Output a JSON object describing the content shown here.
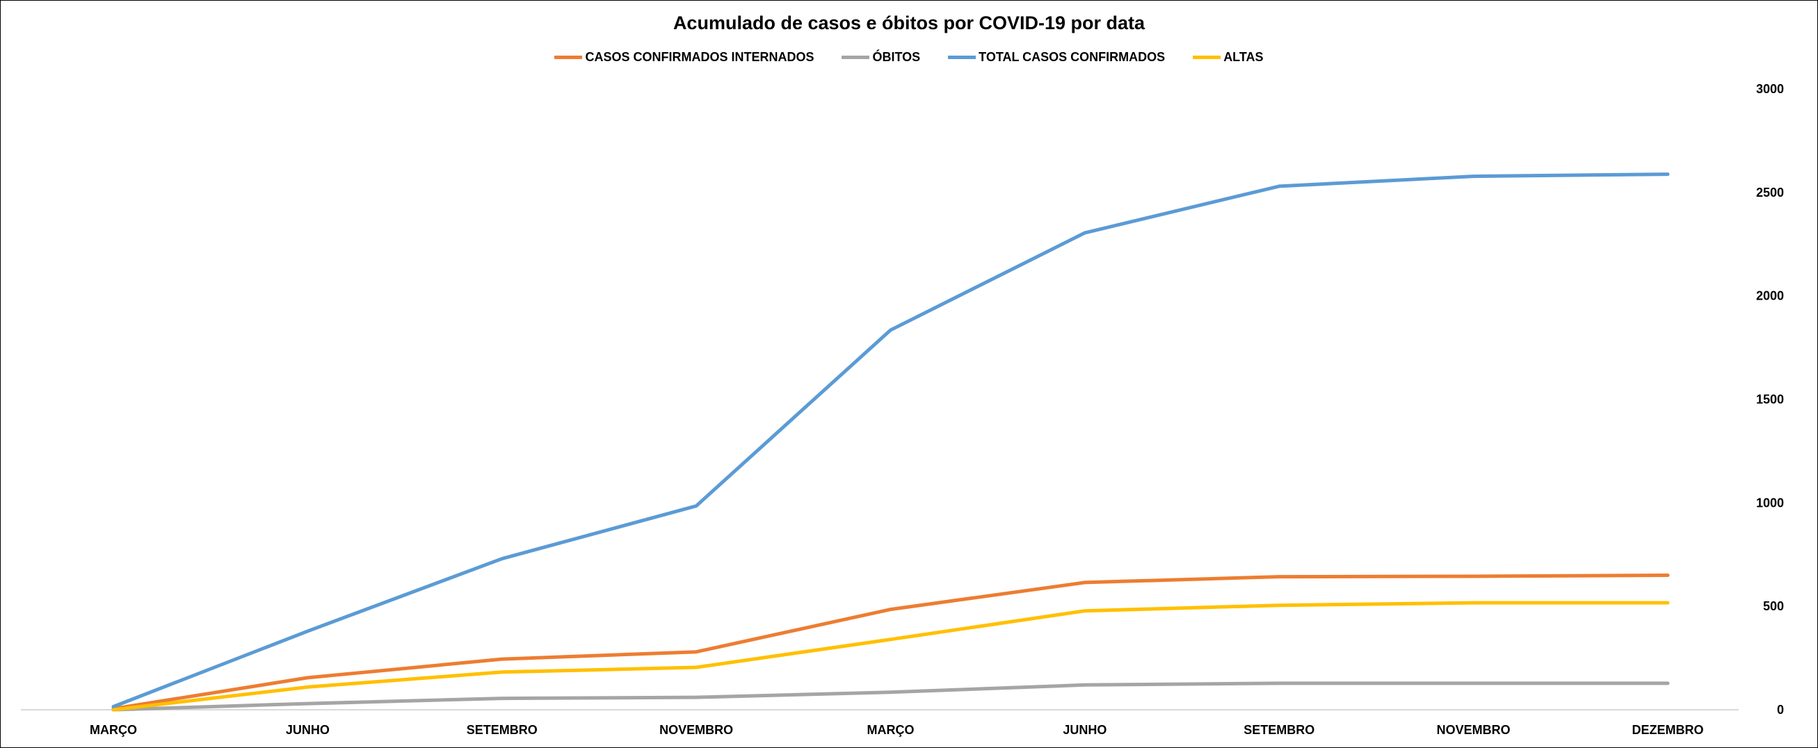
{
  "chart_data": {
    "type": "line",
    "title": "Acumulado de casos e óbitos por COVID-19 por data",
    "categories": [
      "MARÇO",
      "JUNHO",
      "SETEMBRO",
      "NOVEMBRO",
      "MARÇO",
      "JUNHO",
      "SETEMBRO",
      "NOVEMBRO",
      "DEZEMBRO"
    ],
    "series": [
      {
        "name": "CASOS CONFIRMADOS INTERNADOS",
        "color": "#ED7D31",
        "values": [
          5,
          155,
          245,
          280,
          485,
          615,
          643,
          645,
          650
        ]
      },
      {
        "name": "ÓBITOS",
        "color": "#A5A5A5",
        "values": [
          0,
          30,
          55,
          60,
          85,
          120,
          128,
          128,
          128
        ]
      },
      {
        "name": "TOTAL CASOS CONFIRMADOS",
        "color": "#5B9BD5",
        "values": [
          15,
          380,
          730,
          985,
          1835,
          2305,
          2530,
          2578,
          2588
        ]
      },
      {
        "name": "ALTAS",
        "color": "#FFC000",
        "values": [
          0,
          110,
          182,
          205,
          340,
          478,
          505,
          517,
          517
        ]
      }
    ],
    "y_ticks": [
      "0",
      "500",
      "1000",
      "1500",
      "2000",
      "2500",
      "3000"
    ],
    "ylim": [
      0,
      3000
    ],
    "y_axis_position": "right",
    "legend_position": "top",
    "grid": false
  }
}
